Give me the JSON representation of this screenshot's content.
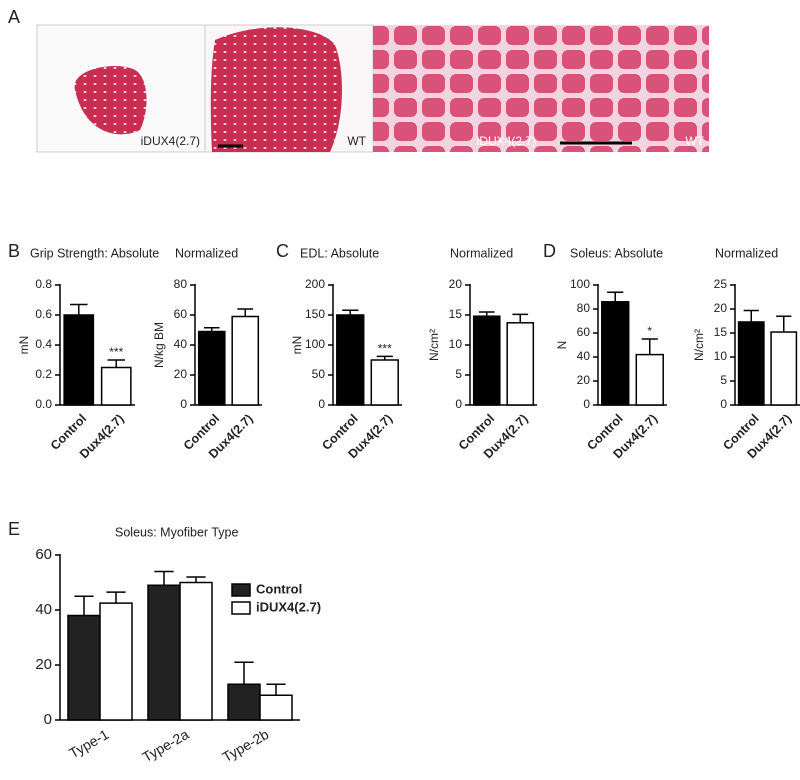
{
  "figure": {
    "panel_labels": [
      "A",
      "B",
      "C",
      "D",
      "E"
    ],
    "image_labels": [
      "iDUX4(2.7)",
      "WT",
      "iDUX4(2.7)",
      "WT"
    ]
  },
  "chart_data": [
    {
      "type": "bar",
      "title": "Grip Strength: Absolute",
      "y_label": "mN",
      "categories": [
        "Control",
        "Dux4(2.7)"
      ],
      "values": [
        0.6,
        0.25
      ],
      "errors": [
        0.07,
        0.05
      ],
      "colors": [
        "#000000",
        "#ffffff"
      ],
      "annotations": [
        {
          "category": "Dux4(2.7)",
          "text": "***"
        }
      ],
      "ylim": [
        0,
        0.8
      ],
      "yticks": [
        {
          "value": 0,
          "label": "0.0"
        },
        0.2,
        0.4,
        0.6,
        0.8
      ]
    },
    {
      "type": "bar",
      "title": "Normalized",
      "y_label": "N/kg BM",
      "categories": [
        "Control",
        "Dux4(2.7)"
      ],
      "values": [
        49,
        59
      ],
      "errors": [
        2.5,
        5
      ],
      "colors": [
        "#000000",
        "#ffffff"
      ],
      "annotations": [],
      "ylim": [
        0,
        80
      ],
      "yticks": [
        0,
        20,
        40,
        60,
        80
      ]
    },
    {
      "type": "bar",
      "title": "EDL: Absolute",
      "y_label": "mN",
      "categories": [
        "Control",
        "Dux4(2.7)"
      ],
      "values": [
        150,
        75
      ],
      "errors": [
        8,
        6
      ],
      "colors": [
        "#000000",
        "#ffffff"
      ],
      "annotations": [
        {
          "category": "Dux4(2.7)",
          "text": "***"
        }
      ],
      "ylim": [
        0,
        200
      ],
      "yticks": [
        0,
        50,
        100,
        150,
        200
      ]
    },
    {
      "type": "bar",
      "title": "Normalized",
      "y_label": "N/cm²",
      "categories": [
        "Control",
        "Dux4(2.7)"
      ],
      "values": [
        14.8,
        13.7
      ],
      "errors": [
        0.7,
        1.4
      ],
      "colors": [
        "#000000",
        "#ffffff"
      ],
      "annotations": [],
      "ylim": [
        0,
        20
      ],
      "yticks": [
        0,
        5,
        10,
        15,
        20
      ]
    },
    {
      "type": "bar",
      "title": "Soleus: Absolute",
      "y_label": "N",
      "categories": [
        "Control",
        "Dux4(2.7)"
      ],
      "values": [
        86,
        42
      ],
      "errors": [
        8,
        13
      ],
      "colors": [
        "#000000",
        "#ffffff"
      ],
      "annotations": [
        {
          "category": "Dux4(2.7)",
          "text": "*"
        }
      ],
      "ylim": [
        0,
        100
      ],
      "yticks": [
        0,
        20,
        40,
        60,
        80,
        100
      ]
    },
    {
      "type": "bar",
      "title": "Normalized",
      "y_label": "N/cm²",
      "categories": [
        "Control",
        "Dux4(2.7)"
      ],
      "values": [
        17.3,
        15.2
      ],
      "errors": [
        2.4,
        3.3
      ],
      "colors": [
        "#000000",
        "#ffffff"
      ],
      "annotations": [],
      "ylim": [
        0,
        25
      ],
      "yticks": [
        0,
        5,
        10,
        15,
        20,
        25
      ]
    },
    {
      "type": "grouped_bar",
      "title": "Soleus: Myofiber Type",
      "categories": [
        "Type-1",
        "Type-2a",
        "Type-2b"
      ],
      "series": [
        {
          "name": "Control",
          "color": "#222222",
          "values": [
            38,
            49,
            13
          ],
          "errors": [
            7,
            5,
            8
          ]
        },
        {
          "name": "iDUX4(2.7)",
          "color": "#ffffff",
          "values": [
            42.5,
            50,
            9
          ],
          "errors": [
            4,
            2,
            4
          ]
        }
      ],
      "ylim": [
        0,
        60
      ],
      "yticks": [
        0,
        20,
        40,
        60
      ]
    }
  ]
}
